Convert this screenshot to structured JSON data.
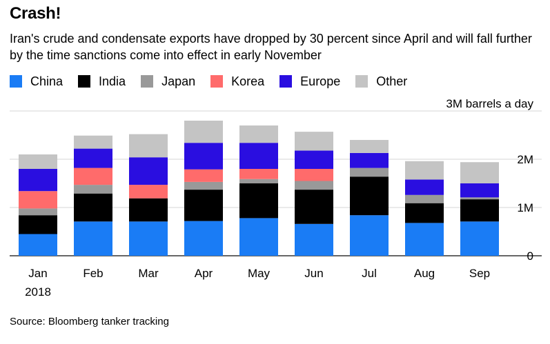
{
  "header": {
    "title": "Crash!",
    "subtitle": "Iran's crude and condensate exports have dropped by 30 percent since April and will fall further by the time sanctions come into effect in early November"
  },
  "source": "Source: Bloomberg tanker tracking",
  "chart_data": {
    "type": "bar",
    "stacked": true,
    "title": "Crash!",
    "categories": [
      "Jan",
      "Feb",
      "Mar",
      "Apr",
      "May",
      "Jun",
      "Jul",
      "Aug",
      "Sep"
    ],
    "category_sublabels": [
      "2018",
      "",
      "",
      "",
      "",
      "",
      "",
      "",
      ""
    ],
    "y_unit_label": "3M barrels a day",
    "y_ticks": [
      {
        "value": 0,
        "label": "0"
      },
      {
        "value": 1000000,
        "label": "1M"
      },
      {
        "value": 2000000,
        "label": "2M"
      },
      {
        "value": 3000000,
        "label": "3M barrels a day"
      }
    ],
    "ylim": [
      0,
      3000000
    ],
    "grid": true,
    "axis_side": "right",
    "legend_position": "top",
    "series": [
      {
        "name": "China",
        "color": "#1a7cf5",
        "values": [
          450000,
          710000,
          710000,
          720000,
          780000,
          660000,
          840000,
          680000,
          710000
        ]
      },
      {
        "name": "India",
        "color": "#000000",
        "values": [
          390000,
          580000,
          480000,
          650000,
          720000,
          710000,
          800000,
          410000,
          460000
        ]
      },
      {
        "name": "Japan",
        "color": "#999999",
        "values": [
          140000,
          180000,
          0,
          160000,
          90000,
          180000,
          180000,
          170000,
          40000
        ]
      },
      {
        "name": "Korea",
        "color": "#ff6b6b",
        "values": [
          360000,
          350000,
          280000,
          260000,
          210000,
          250000,
          0,
          0,
          0
        ]
      },
      {
        "name": "Europe",
        "color": "#2a0ee0",
        "values": [
          460000,
          400000,
          570000,
          550000,
          540000,
          380000,
          310000,
          320000,
          290000
        ]
      },
      {
        "name": "Other",
        "color": "#c4c4c4",
        "values": [
          300000,
          270000,
          480000,
          460000,
          360000,
          390000,
          270000,
          380000,
          440000
        ]
      }
    ]
  }
}
